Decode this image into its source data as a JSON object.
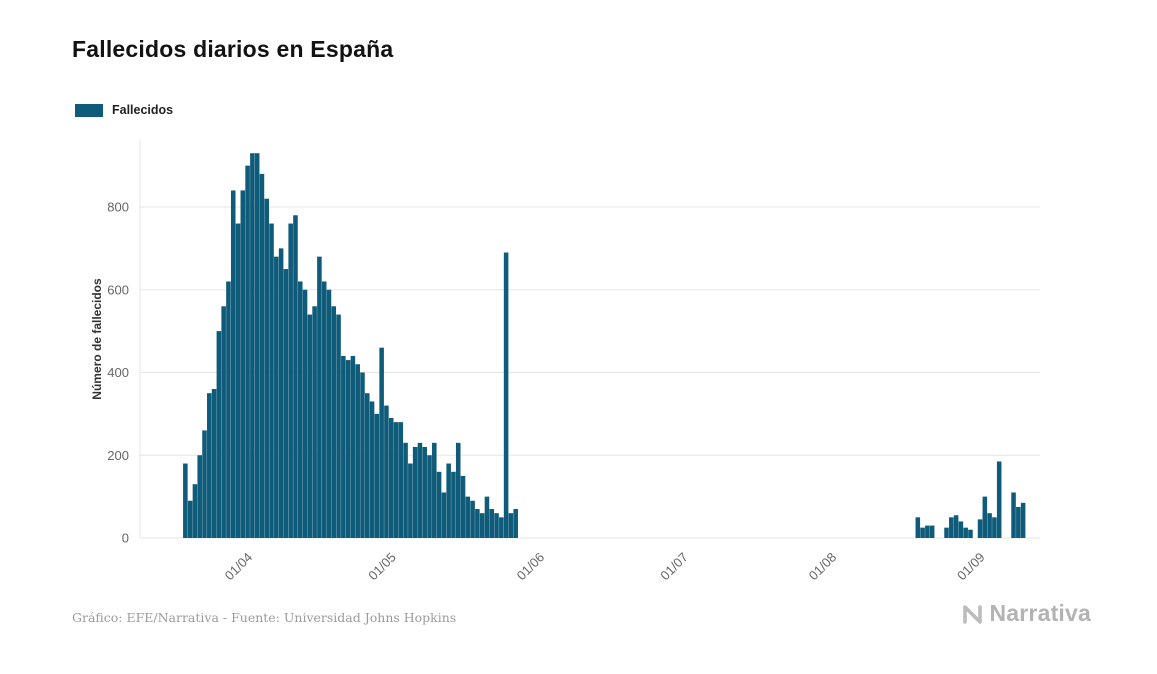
{
  "title": "Fallecidos diarios en España",
  "legend": {
    "label": "Fallecidos",
    "color": "#0f5b7a"
  },
  "y_axis": {
    "label": "Número de fallecidos",
    "ticks": [
      0,
      200,
      400,
      600,
      800
    ]
  },
  "x_axis": {
    "ticks": [
      {
        "label": "01/04",
        "day_index": 14
      },
      {
        "label": "01/05",
        "day_index": 44
      },
      {
        "label": "01/06",
        "day_index": 75
      },
      {
        "label": "01/07",
        "day_index": 105
      },
      {
        "label": "01/08",
        "day_index": 136
      },
      {
        "label": "01/09",
        "day_index": 167
      }
    ]
  },
  "footer": {
    "credit": "Gráfico: EFE/Narrativa - Fuente: Universidad Johns Hopkins"
  },
  "branding": {
    "logo_text": "Narrativa"
  },
  "chart_data": {
    "type": "bar",
    "title": "Fallecidos diarios en España",
    "xlabel": "",
    "ylabel": "Número de fallecidos",
    "ylim": [
      0,
      1000
    ],
    "grid": "horizontal",
    "legend_position": "top-left",
    "series_name": "Fallecidos",
    "bar_color": "#0f5b7a",
    "start_date": "18/03",
    "end_date": "09/09",
    "dates": [
      "18/03",
      "19/03",
      "20/03",
      "21/03",
      "22/03",
      "23/03",
      "24/03",
      "25/03",
      "26/03",
      "27/03",
      "28/03",
      "29/03",
      "30/03",
      "31/03",
      "01/04",
      "02/04",
      "03/04",
      "04/04",
      "05/04",
      "06/04",
      "07/04",
      "08/04",
      "09/04",
      "10/04",
      "11/04",
      "12/04",
      "13/04",
      "14/04",
      "15/04",
      "16/04",
      "17/04",
      "18/04",
      "19/04",
      "20/04",
      "21/04",
      "22/04",
      "23/04",
      "24/04",
      "25/04",
      "26/04",
      "27/04",
      "28/04",
      "29/04",
      "30/04",
      "01/05",
      "02/05",
      "03/05",
      "04/05",
      "05/05",
      "06/05",
      "07/05",
      "08/05",
      "09/05",
      "10/05",
      "11/05",
      "12/05",
      "13/05",
      "14/05",
      "15/05",
      "16/05",
      "17/05",
      "18/05",
      "19/05",
      "20/05",
      "21/05",
      "22/05",
      "23/05",
      "24/05",
      "25/05",
      "26/05",
      "27/05",
      "28/05",
      "29/05",
      "30/05",
      "31/05",
      "01/06",
      "02/06",
      "03/06",
      "04/06",
      "05/06",
      "06/06",
      "07/06",
      "08/06",
      "09/06",
      "10/06",
      "11/06",
      "12/06",
      "13/06",
      "14/06",
      "15/06",
      "16/06",
      "17/06",
      "18/06",
      "19/06",
      "20/06",
      "21/06",
      "22/06",
      "23/06",
      "24/06",
      "25/06",
      "26/06",
      "27/06",
      "28/06",
      "29/06",
      "30/06",
      "01/07",
      "02/07",
      "03/07",
      "04/07",
      "05/07",
      "06/07",
      "07/07",
      "08/07",
      "09/07",
      "10/07",
      "11/07",
      "12/07",
      "13/07",
      "14/07",
      "15/07",
      "16/07",
      "17/07",
      "18/07",
      "19/07",
      "20/07",
      "21/07",
      "22/07",
      "23/07",
      "24/07",
      "25/07",
      "26/07",
      "27/07",
      "28/07",
      "29/07",
      "30/07",
      "31/07",
      "01/08",
      "02/08",
      "03/08",
      "04/08",
      "05/08",
      "06/08",
      "07/08",
      "08/08",
      "09/08",
      "10/08",
      "11/08",
      "12/08",
      "13/08",
      "14/08",
      "15/08",
      "16/08",
      "17/08",
      "18/08",
      "19/08",
      "20/08",
      "21/08",
      "22/08",
      "23/08",
      "24/08",
      "25/08",
      "26/08",
      "27/08",
      "28/08",
      "29/08",
      "30/08",
      "31/08",
      "01/09",
      "02/09",
      "03/09",
      "04/09",
      "05/09",
      "06/09",
      "07/09",
      "08/09",
      "09/09"
    ],
    "values": [
      180,
      90,
      130,
      200,
      260,
      350,
      360,
      500,
      560,
      620,
      840,
      760,
      840,
      900,
      930,
      930,
      880,
      820,
      760,
      680,
      700,
      650,
      760,
      780,
      620,
      600,
      540,
      560,
      680,
      620,
      600,
      560,
      540,
      440,
      430,
      440,
      420,
      400,
      350,
      330,
      300,
      460,
      320,
      290,
      280,
      280,
      230,
      180,
      220,
      230,
      220,
      200,
      230,
      160,
      110,
      180,
      160,
      230,
      150,
      100,
      90,
      70,
      60,
      100,
      70,
      60,
      50,
      690,
      60,
      70,
      0,
      0,
      0,
      0,
      0,
      0,
      0,
      0,
      0,
      0,
      0,
      0,
      0,
      0,
      0,
      0,
      0,
      0,
      0,
      0,
      0,
      0,
      0,
      0,
      0,
      0,
      0,
      0,
      0,
      0,
      0,
      0,
      0,
      0,
      0,
      0,
      0,
      0,
      0,
      0,
      0,
      0,
      0,
      0,
      0,
      0,
      0,
      0,
      0,
      0,
      0,
      0,
      0,
      0,
      0,
      0,
      0,
      0,
      0,
      0,
      0,
      0,
      0,
      0,
      0,
      0,
      0,
      0,
      0,
      0,
      0,
      0,
      0,
      0,
      0,
      0,
      0,
      0,
      0,
      0,
      0,
      0,
      0,
      50,
      25,
      30,
      30,
      0,
      0,
      25,
      50,
      55,
      40,
      25,
      20,
      0,
      45,
      100,
      60,
      50,
      185,
      0,
      0,
      110,
      75,
      85
    ]
  }
}
